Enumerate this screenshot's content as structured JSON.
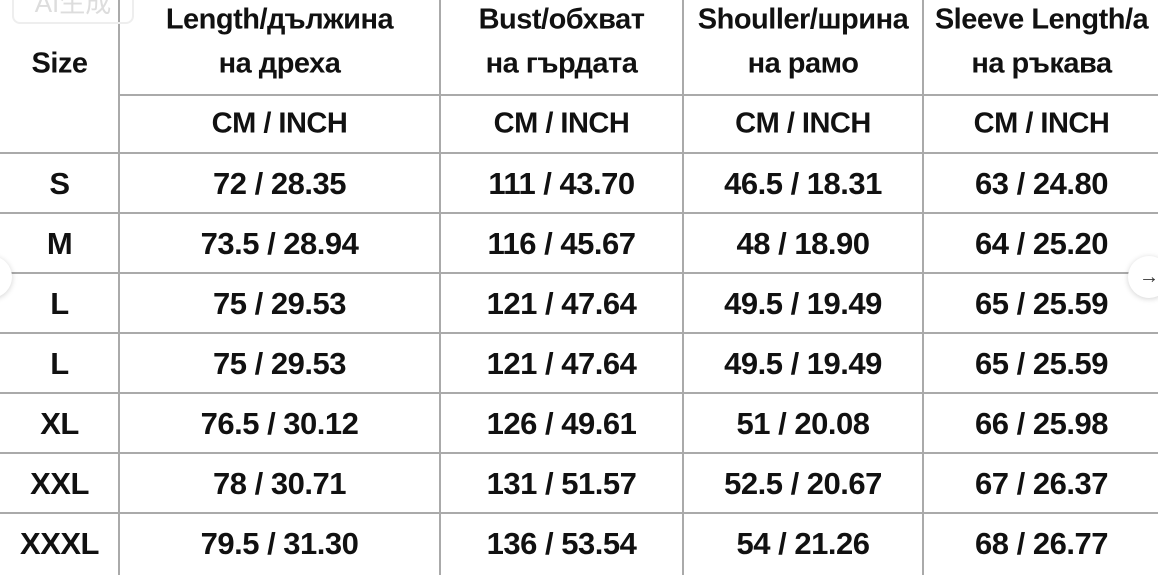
{
  "badge": "AI生成",
  "table": {
    "size_header": "Size",
    "columns": [
      {
        "line1": "Length/дължина",
        "line2": "на дреха",
        "unit": "CM / INCH"
      },
      {
        "line1": "Bust/обхват",
        "line2": "на гърдата",
        "unit": "CM / INCH"
      },
      {
        "line1": "Shouller/шрина",
        "line2": "на рамо",
        "unit": "CM / INCH"
      },
      {
        "line1": "Sleeve Length/a",
        "line2": "на ръкава",
        "unit": "CM / INCH"
      }
    ],
    "rows": [
      {
        "size": "S",
        "values": [
          "72 / 28.35",
          "111 / 43.70",
          "46.5 / 18.31",
          "63 / 24.80"
        ]
      },
      {
        "size": "M",
        "values": [
          "73.5 / 28.94",
          "116 / 45.67",
          "48 / 18.90",
          "64 / 25.20"
        ]
      },
      {
        "size": "L",
        "values": [
          "75 / 29.53",
          "121 / 47.64",
          "49.5 / 19.49",
          "65 / 25.59"
        ]
      },
      {
        "size": "L",
        "values": [
          "75 / 29.53",
          "121 / 47.64",
          "49.5 / 19.49",
          "65 / 25.59"
        ]
      },
      {
        "size": "XL",
        "values": [
          "76.5 / 30.12",
          "126 / 49.61",
          "51 / 20.08",
          "66 / 25.98"
        ]
      },
      {
        "size": "XXL",
        "values": [
          "78 / 30.71",
          "131 / 51.57",
          "52.5 / 20.67",
          "67 / 26.37"
        ]
      },
      {
        "size": "XXXL",
        "values": [
          "79.5 / 31.30",
          "136 / 53.54",
          "54 / 21.26",
          "68 / 26.77"
        ]
      }
    ]
  },
  "nav": {
    "prev_icon": "←",
    "next_icon": "→"
  }
}
